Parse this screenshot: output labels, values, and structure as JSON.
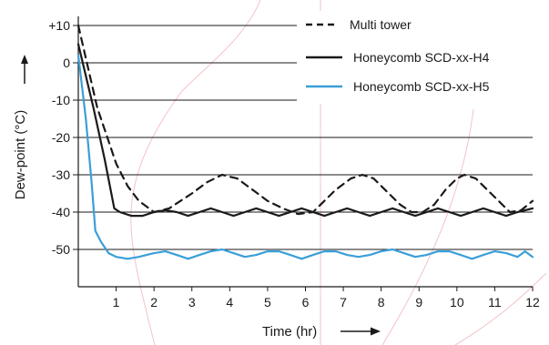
{
  "chart_data": {
    "type": "line",
    "xlabel": "Time (hr)",
    "ylabel": "Dew-point (°C)",
    "xlim": [
      0,
      12
    ],
    "ylim": [
      -60,
      10
    ],
    "x_ticks": [
      "1",
      "2",
      "3",
      "4",
      "5",
      "6",
      "7",
      "8",
      "9",
      "10",
      "11",
      "12"
    ],
    "y_ticks": [
      "+10",
      "0",
      "-10",
      "-20",
      "-30",
      "-40",
      "-50"
    ],
    "grid": "horizontal",
    "legend_position": "top-right",
    "series": [
      {
        "name": "Multi tower",
        "style": "dashed",
        "color": "#1a1a1a",
        "points": [
          [
            0,
            10
          ],
          [
            0.5,
            -12
          ],
          [
            1,
            -27
          ],
          [
            1.3,
            -33
          ],
          [
            1.6,
            -37
          ],
          [
            2,
            -40
          ],
          [
            2.4,
            -39
          ],
          [
            2.7,
            -37
          ],
          [
            3,
            -35
          ],
          [
            3.4,
            -32
          ],
          [
            3.8,
            -30
          ],
          [
            4.2,
            -31
          ],
          [
            4.6,
            -34
          ],
          [
            5,
            -37
          ],
          [
            5.4,
            -39
          ],
          [
            5.8,
            -40.5
          ],
          [
            6.2,
            -40
          ],
          [
            6.5,
            -37
          ],
          [
            6.8,
            -34
          ],
          [
            7.2,
            -31
          ],
          [
            7.5,
            -30
          ],
          [
            7.8,
            -31
          ],
          [
            8.2,
            -35
          ],
          [
            8.5,
            -38
          ],
          [
            8.8,
            -40
          ],
          [
            9.1,
            -40
          ],
          [
            9.4,
            -38
          ],
          [
            9.7,
            -34
          ],
          [
            10,
            -31
          ],
          [
            10.2,
            -30
          ],
          [
            10.5,
            -31
          ],
          [
            10.8,
            -34
          ],
          [
            11.1,
            -37
          ],
          [
            11.4,
            -40
          ],
          [
            11.7,
            -39.5
          ],
          [
            12,
            -37
          ]
        ]
      },
      {
        "name": "Honeycomb SCD-xx-H4",
        "style": "solid",
        "color": "#1a1a1a",
        "points": [
          [
            0,
            5
          ],
          [
            0.4,
            -12
          ],
          [
            0.7,
            -26
          ],
          [
            0.95,
            -39
          ],
          [
            1.1,
            -40
          ],
          [
            1.4,
            -41
          ],
          [
            1.7,
            -41
          ],
          [
            2,
            -40
          ],
          [
            2.3,
            -39.5
          ],
          [
            2.6,
            -40
          ],
          [
            2.9,
            -41
          ],
          [
            3.2,
            -40
          ],
          [
            3.5,
            -39
          ],
          [
            3.8,
            -40
          ],
          [
            4.1,
            -41
          ],
          [
            4.4,
            -40
          ],
          [
            4.7,
            -39
          ],
          [
            5,
            -40
          ],
          [
            5.3,
            -41
          ],
          [
            5.6,
            -40
          ],
          [
            5.9,
            -39
          ],
          [
            6.2,
            -40
          ],
          [
            6.5,
            -41
          ],
          [
            6.8,
            -40
          ],
          [
            7.1,
            -39
          ],
          [
            7.4,
            -40
          ],
          [
            7.7,
            -41
          ],
          [
            8,
            -40
          ],
          [
            8.3,
            -39
          ],
          [
            8.6,
            -40
          ],
          [
            8.9,
            -41
          ],
          [
            9.2,
            -40
          ],
          [
            9.5,
            -39
          ],
          [
            9.8,
            -40
          ],
          [
            10.1,
            -41
          ],
          [
            10.4,
            -40
          ],
          [
            10.7,
            -39
          ],
          [
            11,
            -40
          ],
          [
            11.3,
            -41
          ],
          [
            11.6,
            -40
          ],
          [
            12,
            -39
          ]
        ]
      },
      {
        "name": "Honeycomb SCD-xx-H5",
        "style": "solid",
        "color": "#3a9fd8",
        "points": [
          [
            0,
            2
          ],
          [
            0.2,
            -15
          ],
          [
            0.35,
            -32
          ],
          [
            0.45,
            -45
          ],
          [
            0.6,
            -48
          ],
          [
            0.8,
            -51
          ],
          [
            1,
            -52
          ],
          [
            1.3,
            -52.5
          ],
          [
            1.6,
            -52
          ],
          [
            2,
            -51
          ],
          [
            2.3,
            -50.5
          ],
          [
            2.6,
            -51.5
          ],
          [
            2.9,
            -52.5
          ],
          [
            3.2,
            -51.5
          ],
          [
            3.5,
            -50.5
          ],
          [
            3.8,
            -50
          ],
          [
            4.1,
            -51
          ],
          [
            4.4,
            -52
          ],
          [
            4.7,
            -51.5
          ],
          [
            5,
            -50.5
          ],
          [
            5.3,
            -50.5
          ],
          [
            5.6,
            -51.5
          ],
          [
            5.9,
            -52.5
          ],
          [
            6.2,
            -51.5
          ],
          [
            6.5,
            -50.5
          ],
          [
            6.8,
            -50.5
          ],
          [
            7.1,
            -51.5
          ],
          [
            7.4,
            -52
          ],
          [
            7.7,
            -51.5
          ],
          [
            8,
            -50.5
          ],
          [
            8.3,
            -50
          ],
          [
            8.6,
            -51
          ],
          [
            8.9,
            -52
          ],
          [
            9.2,
            -51.5
          ],
          [
            9.5,
            -50.5
          ],
          [
            9.8,
            -50.5
          ],
          [
            10.1,
            -51.5
          ],
          [
            10.4,
            -52.5
          ],
          [
            10.7,
            -51.5
          ],
          [
            11,
            -50.5
          ],
          [
            11.3,
            -51
          ],
          [
            11.6,
            -52
          ],
          [
            11.8,
            -50.5
          ],
          [
            12,
            -52
          ]
        ]
      }
    ]
  }
}
